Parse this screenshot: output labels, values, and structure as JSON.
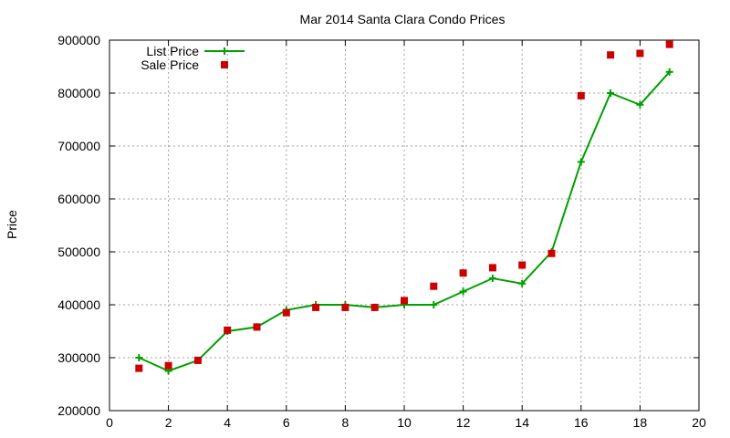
{
  "chart_data": {
    "type": "line",
    "title": "Mar 2014 Santa Clara Condo Prices",
    "xlabel": "",
    "ylabel": "Price",
    "xlim": [
      0,
      20
    ],
    "ylim": [
      200000,
      900000
    ],
    "x_ticks": [
      0,
      2,
      4,
      6,
      8,
      10,
      12,
      14,
      16,
      18,
      20
    ],
    "y_ticks": [
      200000,
      300000,
      400000,
      500000,
      600000,
      700000,
      800000,
      900000
    ],
    "grid": true,
    "legend_position": "top-left",
    "series": [
      {
        "name": "List Price",
        "style": "line with plus markers",
        "color": "#00a000",
        "x": [
          1,
          2,
          3,
          4,
          5,
          6,
          7,
          8,
          9,
          10,
          11,
          12,
          13,
          14,
          15,
          16,
          17,
          18,
          19
        ],
        "values": [
          300000,
          275000,
          295000,
          350000,
          358000,
          390000,
          400000,
          400000,
          395000,
          400000,
          400000,
          425000,
          450000,
          440000,
          500000,
          670000,
          800000,
          778000,
          840000
        ]
      },
      {
        "name": "Sale Price",
        "style": "square markers",
        "color": "#cc0000",
        "x": [
          1,
          2,
          3,
          4,
          5,
          6,
          7,
          8,
          9,
          10,
          11,
          12,
          13,
          14,
          15,
          16,
          17,
          18,
          19
        ],
        "values": [
          280000,
          285000,
          295000,
          352000,
          358000,
          385000,
          395000,
          395000,
          395000,
          408000,
          435000,
          460000,
          470000,
          475000,
          497000,
          795000,
          872000,
          875000,
          892000
        ]
      }
    ]
  }
}
